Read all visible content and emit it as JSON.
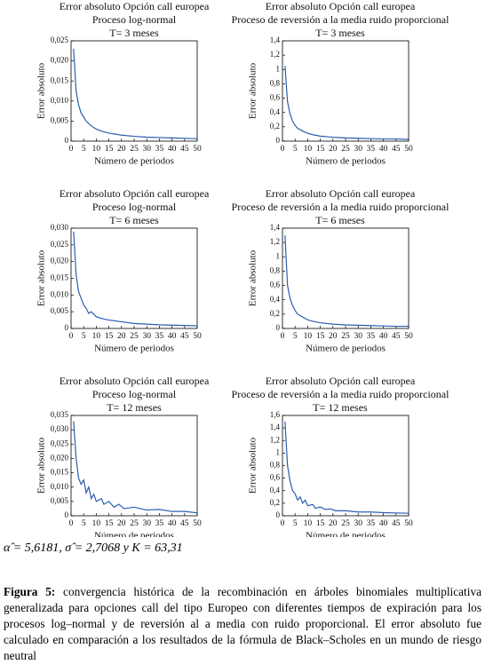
{
  "chart_data": [
    {
      "type": "line",
      "title": "Error absoluto Opción call europea",
      "subtitle": "Proceso log-normal",
      "annotation": "T= 3 meses",
      "xlabel": "Número de periodos",
      "ylabel": "Error absoluto",
      "color": "#2a5db0",
      "x": [
        1,
        2,
        3,
        4,
        5,
        6,
        8,
        10,
        12,
        15,
        20,
        25,
        30,
        35,
        40,
        45,
        50
      ],
      "values": [
        0.023,
        0.0125,
        0.009,
        0.007,
        0.006,
        0.005,
        0.0038,
        0.003,
        0.0025,
        0.002,
        0.0015,
        0.0012,
        0.001,
        0.0009,
        0.0008,
        0.0007,
        0.0006
      ],
      "xlim": [
        0,
        50
      ],
      "xticks": [
        0,
        5,
        10,
        15,
        20,
        25,
        30,
        35,
        40,
        45,
        50
      ],
      "ylim": [
        0,
        0.025
      ],
      "yticks": [
        0,
        {
          "value": 0.005,
          "label": "0,005"
        },
        {
          "value": 0.01,
          "label": "0,010"
        },
        {
          "value": 0.015,
          "label": "0,015"
        },
        {
          "value": 0.02,
          "label": "0,020"
        },
        {
          "value": 0.025,
          "label": "0,025"
        }
      ]
    },
    {
      "type": "line",
      "title": "Error absoluto Opción call europea",
      "subtitle": "Proceso de reversión a la media ruido proporcional",
      "annotation": "T= 3 meses",
      "xlabel": "Número de periodos",
      "ylabel": "Error absoluto",
      "color": "#2a5db0",
      "x": [
        1,
        2,
        3,
        4,
        5,
        6,
        8,
        10,
        12,
        15,
        20,
        25,
        30,
        35,
        40,
        45,
        50
      ],
      "values": [
        1.05,
        0.55,
        0.38,
        0.28,
        0.22,
        0.18,
        0.14,
        0.11,
        0.09,
        0.07,
        0.055,
        0.045,
        0.04,
        0.035,
        0.03,
        0.03,
        0.025
      ],
      "xlim": [
        0,
        50
      ],
      "xticks": [
        0,
        5,
        10,
        15,
        20,
        25,
        30,
        35,
        40,
        45,
        50
      ],
      "ylim": [
        0,
        1.4
      ],
      "yticks": [
        0,
        {
          "value": 0.2,
          "label": "0,2"
        },
        {
          "value": 0.4,
          "label": "0,4"
        },
        {
          "value": 0.6,
          "label": "0,6"
        },
        {
          "value": 0.8,
          "label": "0,8"
        },
        1,
        {
          "value": 1.2,
          "label": "1,2"
        },
        {
          "value": 1.4,
          "label": "1,4"
        }
      ]
    },
    {
      "type": "line",
      "title": "Error absoluto Opción call europea",
      "subtitle": "Proceso log-normal",
      "annotation": "T= 6 meses",
      "xlabel": "Número de periodos",
      "ylabel": "Error absoluto",
      "color": "#2a5db0",
      "x": [
        1,
        2,
        3,
        4,
        5,
        6,
        7,
        8,
        10,
        12,
        15,
        20,
        25,
        30,
        35,
        40,
        45,
        50
      ],
      "values": [
        0.029,
        0.016,
        0.011,
        0.009,
        0.007,
        0.006,
        0.0045,
        0.005,
        0.0035,
        0.003,
        0.0025,
        0.002,
        0.0015,
        0.0013,
        0.0011,
        0.001,
        0.0009,
        0.0008
      ],
      "xlim": [
        0,
        50
      ],
      "xticks": [
        0,
        5,
        10,
        15,
        20,
        25,
        30,
        35,
        40,
        45,
        50
      ],
      "ylim": [
        0,
        0.03
      ],
      "yticks": [
        0,
        {
          "value": 0.005,
          "label": "0,005"
        },
        {
          "value": 0.01,
          "label": "0,010"
        },
        {
          "value": 0.015,
          "label": "0,015"
        },
        {
          "value": 0.02,
          "label": "0,020"
        },
        {
          "value": 0.025,
          "label": "0,025"
        },
        {
          "value": 0.03,
          "label": "0,030"
        }
      ]
    },
    {
      "type": "line",
      "title": "Error absoluto Opción call europea",
      "subtitle": "Proceso de reversión a la media ruido proporcional",
      "annotation": "T= 6 meses",
      "xlabel": "Número de periodos",
      "ylabel": "Error absoluto",
      "color": "#2a5db0",
      "x": [
        1,
        2,
        3,
        4,
        5,
        6,
        8,
        10,
        12,
        15,
        20,
        25,
        30,
        35,
        40,
        45,
        50
      ],
      "values": [
        1.3,
        0.6,
        0.42,
        0.32,
        0.25,
        0.2,
        0.16,
        0.12,
        0.1,
        0.08,
        0.06,
        0.05,
        0.045,
        0.04,
        0.035,
        0.03,
        0.03
      ],
      "xlim": [
        0,
        50
      ],
      "xticks": [
        0,
        5,
        10,
        15,
        20,
        25,
        30,
        35,
        40,
        45,
        50
      ],
      "ylim": [
        0,
        1.4
      ],
      "yticks": [
        0,
        {
          "value": 0.2,
          "label": "0,2"
        },
        {
          "value": 0.4,
          "label": "0,4"
        },
        {
          "value": 0.6,
          "label": "0,6"
        },
        {
          "value": 0.8,
          "label": "0,8"
        },
        1,
        {
          "value": 1.2,
          "label": "1,2"
        },
        {
          "value": 1.4,
          "label": "1,4"
        }
      ]
    },
    {
      "type": "line",
      "title": "Error absoluto Opción call europea",
      "subtitle": "Proceso log-normal",
      "annotation": "T= 12 meses",
      "xlabel": "Número de periodos",
      "ylabel": "Error absoluto",
      "color": "#2a5db0",
      "x": [
        1,
        2,
        3,
        4,
        5,
        6,
        7,
        8,
        9,
        10,
        12,
        13,
        15,
        17,
        19,
        21,
        25,
        30,
        35,
        40,
        45,
        50
      ],
      "values": [
        0.033,
        0.02,
        0.013,
        0.011,
        0.0125,
        0.008,
        0.01,
        0.006,
        0.0075,
        0.005,
        0.006,
        0.004,
        0.005,
        0.003,
        0.004,
        0.0025,
        0.003,
        0.002,
        0.0022,
        0.0015,
        0.0015,
        0.001
      ],
      "xlim": [
        0,
        50
      ],
      "xticks": [
        0,
        5,
        10,
        15,
        20,
        25,
        30,
        35,
        40,
        45,
        50
      ],
      "ylim": [
        0,
        0.035
      ],
      "yticks": [
        0,
        {
          "value": 0.005,
          "label": "0,005"
        },
        {
          "value": 0.01,
          "label": "0,010"
        },
        {
          "value": 0.015,
          "label": "0,015"
        },
        {
          "value": 0.02,
          "label": "0,020"
        },
        {
          "value": 0.025,
          "label": "0,025"
        },
        {
          "value": 0.03,
          "label": "0,030"
        },
        {
          "value": 0.035,
          "label": "0,035"
        }
      ]
    },
    {
      "type": "line",
      "title": "Error absoluto Opción call europea",
      "subtitle": "Proceso de reversión a la media ruido proporcional",
      "annotation": "T= 12 meses",
      "xlabel": "Número de periodos",
      "ylabel": "Error absoluto",
      "color": "#2a5db0",
      "x": [
        1,
        2,
        3,
        4,
        5,
        6,
        7,
        8,
        9,
        10,
        12,
        13,
        15,
        17,
        19,
        21,
        25,
        30,
        35,
        40,
        45,
        50
      ],
      "values": [
        1.5,
        0.8,
        0.55,
        0.4,
        0.35,
        0.25,
        0.3,
        0.2,
        0.25,
        0.16,
        0.18,
        0.12,
        0.14,
        0.1,
        0.11,
        0.08,
        0.08,
        0.06,
        0.06,
        0.05,
        0.045,
        0.04
      ],
      "xlim": [
        0,
        50
      ],
      "xticks": [
        0,
        5,
        10,
        15,
        20,
        25,
        30,
        35,
        40,
        45,
        50
      ],
      "ylim": [
        0,
        1.6
      ],
      "yticks": [
        0,
        {
          "value": 0.2,
          "label": "0,2"
        },
        {
          "value": 0.4,
          "label": "0,4"
        },
        {
          "value": 0.6,
          "label": "0,6"
        },
        {
          "value": 0.8,
          "label": "0,8"
        },
        1,
        {
          "value": 1.2,
          "label": "1,2"
        },
        {
          "value": 1.4,
          "label": "1,4"
        },
        {
          "value": 1.6,
          "label": "1,6"
        }
      ]
    }
  ],
  "parameters": "α̂ = 5,6181, σ̂ = 2,7068 y K = 63,31",
  "caption": {
    "label": "Figura 5:",
    "text": "convergencia histórica de la recombinación en árboles binomiales multiplicativa generalizada para opciones call del tipo Europeo con diferentes tiempos de expiración para los procesos log–normal y de reversión al a media con ruido proporcional. El error absoluto fue calculado en comparación a los resultados de la fórmula de Black–Scholes en un mundo de riesgo neutral"
  }
}
